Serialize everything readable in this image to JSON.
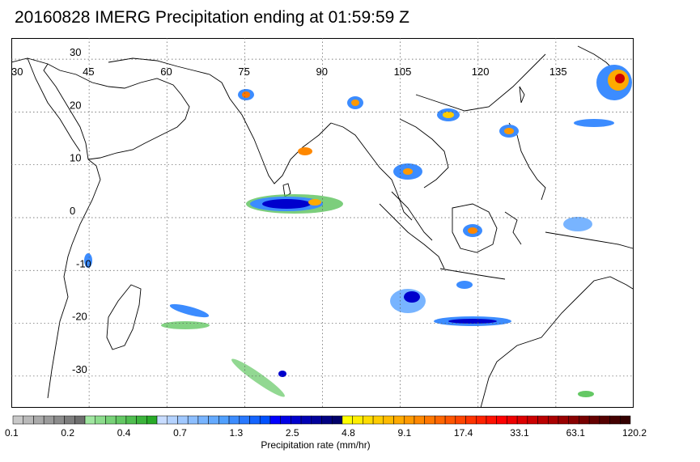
{
  "title": "20160828 IMERG Precipitation ending at 01:59:59 Z",
  "map": {
    "longitude_labels": [
      "30",
      "45",
      "60",
      "75",
      "90",
      "105",
      "120",
      "135"
    ],
    "longitude_values": [
      30,
      45,
      60,
      75,
      90,
      105,
      120,
      135
    ],
    "latitude_labels": [
      "30",
      "20",
      "10",
      "0",
      "-10",
      "-20",
      "-30"
    ],
    "latitude_values": [
      30,
      20,
      10,
      0,
      -10,
      -20,
      -30
    ],
    "lon_range": [
      30,
      150
    ],
    "lat_range": [
      -36,
      34
    ],
    "grid": "dotted"
  },
  "colorbar": {
    "label": "Precipitation rate (mm/hr)",
    "tick_labels": [
      "0.1",
      "0.2",
      "0.4",
      "0.7",
      "1.3",
      "2.5",
      "4.8",
      "9.1",
      "17.4",
      "33.1",
      "63.1",
      "120.2"
    ],
    "colors": [
      "#c8c8c8",
      "#b9b9b9",
      "#aaaaaa",
      "#9b9b9b",
      "#8c8c8c",
      "#7d7d7d",
      "#6e6e6e",
      "#a0e6a0",
      "#8cdc8c",
      "#78d278",
      "#64c864",
      "#50be50",
      "#3cb43c",
      "#28aa28",
      "#c8dcff",
      "#b4d2ff",
      "#a0c8ff",
      "#8cbeff",
      "#78b4ff",
      "#64aaff",
      "#50a0ff",
      "#3c8cff",
      "#2878ff",
      "#1464ff",
      "#0050ff",
      "#0000ff",
      "#0000e6",
      "#0000cd",
      "#0000b4",
      "#00009b",
      "#000082",
      "#000069",
      "#ffff00",
      "#ffee00",
      "#ffdc00",
      "#ffcc00",
      "#ffbb00",
      "#ffaa00",
      "#ff9900",
      "#ff8800",
      "#ff7700",
      "#ff6600",
      "#ff5500",
      "#ff4400",
      "#ff3300",
      "#ff2200",
      "#ff1100",
      "#ff0000",
      "#ee0000",
      "#dd0000",
      "#cc0000",
      "#bb0000",
      "#aa0000",
      "#990000",
      "#880000",
      "#770000",
      "#660000",
      "#550000",
      "#440000",
      "#330000"
    ]
  }
}
